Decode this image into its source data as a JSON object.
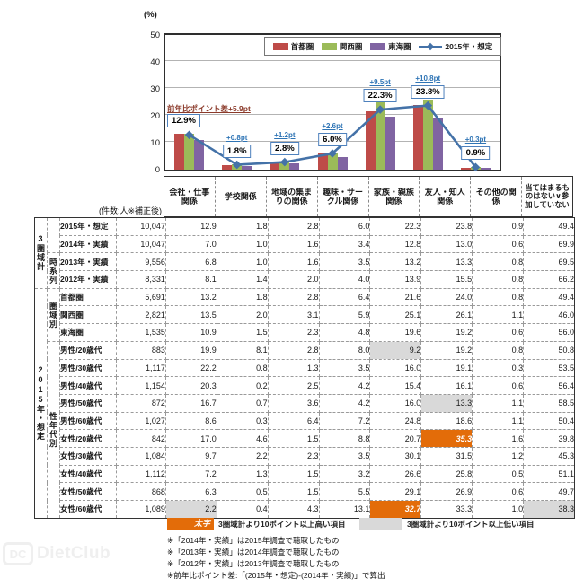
{
  "chart_data": {
    "type": "bar+line",
    "unit_label": "(%)",
    "ylim": [
      0,
      50
    ],
    "yticks": [
      0,
      10,
      20,
      30,
      40,
      50
    ],
    "grid": true,
    "legend_position": "top-inside",
    "categories": [
      "会社・仕事関係",
      "学校関係",
      "地域の集まりの関係",
      "趣味・サークル関係",
      "家族・親族関係",
      "友人・知人関係",
      "その他の関係"
    ],
    "series": [
      {
        "name": "首都圏",
        "key": "shutoken",
        "type": "bar",
        "color": "#BE4B48",
        "values": [
          13.2,
          1.8,
          2.8,
          6.4,
          21.6,
          24.0,
          0.8
        ]
      },
      {
        "name": "関西圏",
        "key": "kansai",
        "type": "bar",
        "color": "#9BBB59",
        "values": [
          13.5,
          2.0,
          3.1,
          5.9,
          25.1,
          26.1,
          1.1
        ]
      },
      {
        "name": "東海圏",
        "key": "tokai",
        "type": "bar",
        "color": "#8064A2",
        "values": [
          10.9,
          1.5,
          2.3,
          4.8,
          19.6,
          19.2,
          0.6
        ]
      },
      {
        "name": "2015年・想定",
        "key": "estimate-2015",
        "type": "line",
        "color": "#4472A8",
        "values": [
          12.9,
          1.8,
          2.8,
          6.0,
          22.3,
          23.8,
          0.9
        ]
      }
    ],
    "annotations": [
      {
        "diff": "前年比ポイント差+5.9pt",
        "value": "12.9%"
      },
      {
        "diff": "+0.8pt",
        "value": "1.8%"
      },
      {
        "diff": "+1.2pt",
        "value": "2.8%"
      },
      {
        "diff": "+2.6pt",
        "value": "6.0%"
      },
      {
        "diff": "+9.5pt",
        "value": "22.3%"
      },
      {
        "diff": "+10.8pt",
        "value": "23.8%"
      },
      {
        "diff": "+0.3pt",
        "value": "0.9%"
      }
    ]
  },
  "table": {
    "count_header": "(件数:人※補正後)",
    "columns": [
      "会社・仕事関係",
      "学校関係",
      "地域の集まりの関係",
      "趣味・サークル関係",
      "家族・親族関係",
      "友人・知人関係",
      "その他の関係",
      "当てはまるものはない∨参加していない"
    ],
    "groups": [
      {
        "label": "3圏域計",
        "subgroups": [
          {
            "label": "",
            "rows": [
              {
                "label": "2015年・想定",
                "count": "10,047",
                "values": [
                  "12.9",
                  "1.8",
                  "2.8",
                  "6.0",
                  "22.3",
                  "23.8",
                  "0.9",
                  "49.4"
                ]
              },
              {
                "label": "2014年・実績",
                "count": "10,047",
                "values": [
                  "7.0",
                  "1.0",
                  "1.6",
                  "3.4",
                  "12.8",
                  "13.0",
                  "0.6",
                  "69.9"
                ]
              }
            ]
          },
          {
            "label": "時系列",
            "rows": [
              {
                "label": "2013年・実績",
                "count": "9,556",
                "values": [
                  "6.8",
                  "1.0",
                  "1.6",
                  "3.5",
                  "13.2",
                  "13.3",
                  "0.8",
                  "69.5"
                ]
              },
              {
                "label": "2012年・実績",
                "count": "8,331",
                "values": [
                  "8.1",
                  "1.4",
                  "2.0",
                  "4.0",
                  "13.9",
                  "15.5",
                  "0.8",
                  "66.2"
                ]
              }
            ]
          }
        ]
      },
      {
        "label": "2015年・想定",
        "subgroups": [
          {
            "label": "圏域別",
            "rows": [
              {
                "label": "首都圏",
                "count": "5,691",
                "values": [
                  "13.2",
                  "1.8",
                  "2.8",
                  "6.4",
                  "21.6",
                  "24.0",
                  "0.8",
                  "49.4"
                ]
              },
              {
                "label": "関西圏",
                "count": "2,821",
                "values": [
                  "13.5",
                  "2.0",
                  "3.1",
                  "5.9",
                  "25.1",
                  "26.1",
                  "1.1",
                  "46.0"
                ]
              },
              {
                "label": "東海圏",
                "count": "1,535",
                "values": [
                  "10.9",
                  "1.5",
                  "2.3",
                  "4.8",
                  "19.6",
                  "19.2",
                  "0.6",
                  "56.0"
                ]
              }
            ]
          },
          {
            "label": "性年代別",
            "rows": [
              {
                "label": "男性/20歳代",
                "count": "883",
                "values": [
                  "19.9",
                  "8.1",
                  "2.8",
                  "8.0",
                  "9.2",
                  "19.2",
                  "0.8",
                  "50.8"
                ],
                "low": [
                  4
                ]
              },
              {
                "label": "男性/30歳代",
                "count": "1,117",
                "values": [
                  "22.2",
                  "0.8",
                  "1.3",
                  "3.5",
                  "16.0",
                  "19.1",
                  "0.3",
                  "53.5"
                ]
              },
              {
                "label": "男性/40歳代",
                "count": "1,154",
                "values": [
                  "20.3",
                  "0.2",
                  "2.5",
                  "4.2",
                  "15.4",
                  "16.1",
                  "0.6",
                  "56.4"
                ]
              },
              {
                "label": "男性/50歳代",
                "count": "872",
                "values": [
                  "16.7",
                  "0.7",
                  "3.6",
                  "4.2",
                  "16.0",
                  "13.3",
                  "1.1",
                  "58.5"
                ],
                "low": [
                  5
                ]
              },
              {
                "label": "男性/60歳代",
                "count": "1,027",
                "values": [
                  "8.6",
                  "0.3",
                  "6.4",
                  "7.2",
                  "24.8",
                  "18.6",
                  "1.1",
                  "50.4"
                ]
              },
              {
                "label": "女性/20歳代",
                "count": "842",
                "values": [
                  "17.0",
                  "4.6",
                  "1.5",
                  "8.8",
                  "20.7",
                  "35.3",
                  "1.6",
                  "39.8"
                ],
                "high": [
                  5
                ],
                "divider": true
              },
              {
                "label": "女性/30歳代",
                "count": "1,084",
                "values": [
                  "9.7",
                  "2.2",
                  "2.3",
                  "3.5",
                  "30.1",
                  "31.5",
                  "1.2",
                  "45.3"
                ]
              },
              {
                "label": "女性/40歳代",
                "count": "1,112",
                "values": [
                  "7.2",
                  "1.3",
                  "1.5",
                  "3.2",
                  "26.6",
                  "25.8",
                  "0.5",
                  "51.1"
                ]
              },
              {
                "label": "女性/50歳代",
                "count": "868",
                "values": [
                  "6.3",
                  "0.5",
                  "1.5",
                  "5.5",
                  "29.1",
                  "26.9",
                  "0.6",
                  "49.7"
                ]
              },
              {
                "label": "女性/60歳代",
                "count": "1,089",
                "values": [
                  "2.2",
                  "0.4",
                  "4.3",
                  "13.1",
                  "32.7",
                  "33.3",
                  "1.0",
                  "38.3"
                ],
                "high": [
                  4
                ],
                "low": [
                  0,
                  7
                ]
              }
            ]
          }
        ]
      }
    ]
  },
  "key": {
    "high_label": "太字",
    "high_text": "3圏域計より10ポイント以上高い項目",
    "low_text": "3圏域計より10ポイント以上低い項目"
  },
  "footnotes": [
    "※「2014年・実績」は2015年調査で聴取したもの",
    "※「2013年・実績」は2014年調査で聴取したもの",
    "※「2012年・実績」は2013年調査で聴取したもの",
    "※前年比ポイント差:「(2015年・想定)-(2014年・実績)」で算出"
  ],
  "watermark": {
    "abbr": "DC",
    "name": "DietClub"
  },
  "colors": {
    "bar_shutoken": "#BE4B48",
    "bar_kansai": "#9BBB59",
    "bar_tokai": "#8064A2",
    "trend_line": "#4472A8",
    "highlight_high": "#E36C09",
    "highlight_low": "#D9D9D9",
    "annotation_border": "#4E81BD"
  }
}
